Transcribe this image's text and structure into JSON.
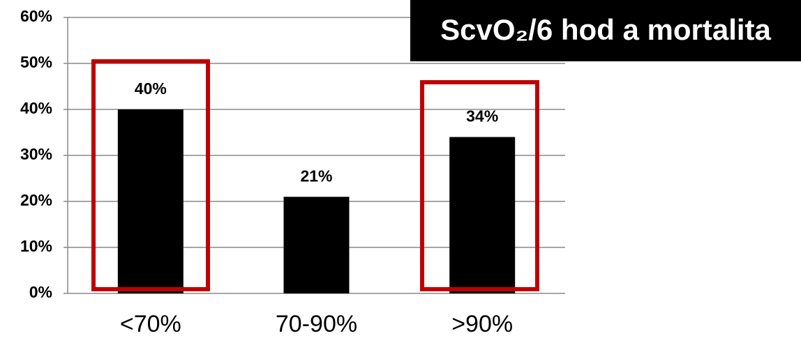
{
  "chart_data": {
    "type": "bar",
    "title": "ScvO₂/6 hod a mortalita",
    "categories": [
      "<70%",
      "70-90%",
      ">90%"
    ],
    "values": [
      40,
      21,
      34
    ],
    "value_labels": [
      "40%",
      "21%",
      "34%"
    ],
    "color": "#000000",
    "ylim": [
      0,
      60
    ],
    "yticks": [
      {
        "value": 0,
        "label": "0%"
      },
      {
        "value": 10,
        "label": "10%"
      },
      {
        "value": 20,
        "label": "20%"
      },
      {
        "value": 30,
        "label": "30%"
      },
      {
        "value": 40,
        "label": "40%"
      },
      {
        "value": 50,
        "label": "50%"
      },
      {
        "value": 60,
        "label": "60%"
      }
    ],
    "grid": true
  }
}
